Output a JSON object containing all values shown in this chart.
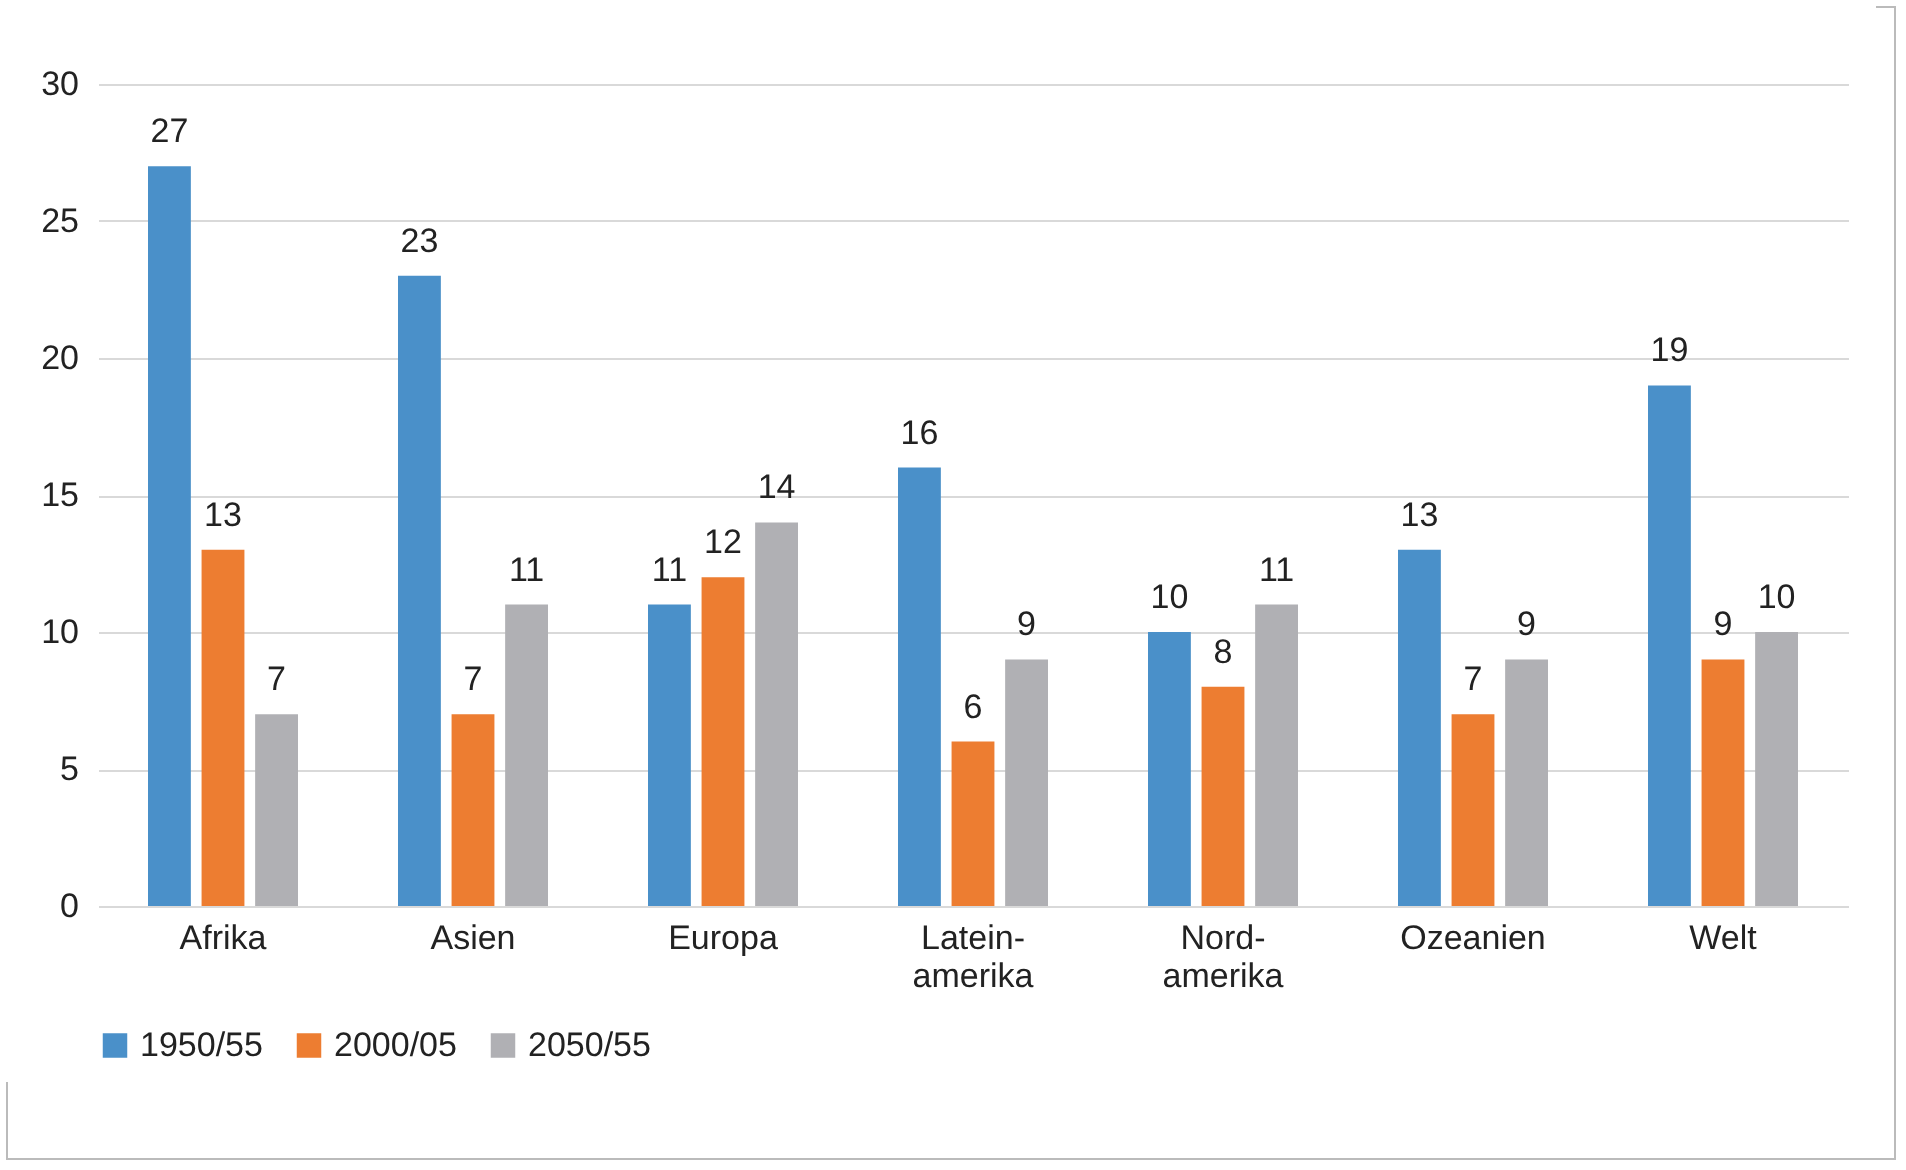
{
  "chart_data": {
    "type": "bar",
    "categories": [
      "Afrika",
      "Asien",
      "Europa",
      "Latein-\namerika",
      "Nord-\namerika",
      "Ozeanien",
      "Welt"
    ],
    "series": [
      {
        "name": "1950/55",
        "color": "#4a90c9",
        "values": [
          27,
          23,
          11,
          16,
          10,
          13,
          19
        ]
      },
      {
        "name": "2000/05",
        "color": "#ed7d31",
        "values": [
          13,
          7,
          12,
          6,
          8,
          7,
          9
        ]
      },
      {
        "name": "2050/55",
        "color": "#b0b0b4",
        "values": [
          7,
          11,
          14,
          9,
          11,
          9,
          10
        ]
      }
    ],
    "ylim": [
      0,
      30
    ],
    "yticks": [
      0,
      5,
      10,
      15,
      20,
      25,
      30
    ],
    "grid": "y",
    "legend": "bottom",
    "data_labels": true
  }
}
